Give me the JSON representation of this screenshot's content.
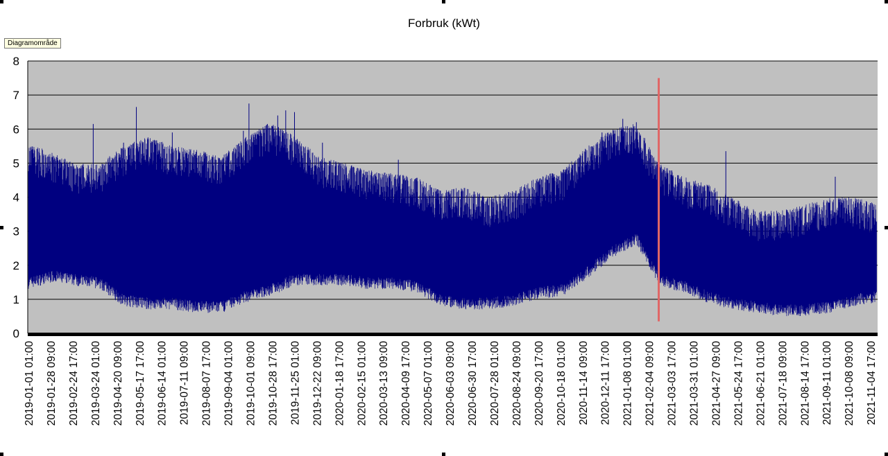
{
  "tooltip": "Diagramområde",
  "colors": {
    "plot_bg": "#c0c0c0",
    "series": "#000080",
    "marker": "#e06666",
    "grid": "#000000"
  },
  "chart_data": {
    "type": "line",
    "title": "Forbruk (kWt)",
    "xlabel": "",
    "ylabel": "",
    "ylim": [
      0,
      8
    ],
    "yticks": [
      0,
      1,
      2,
      3,
      4,
      5,
      6,
      7,
      8
    ],
    "grid": true,
    "x_tick_labels": [
      "2019-01-01 01:00",
      "2019-01-28 09:00",
      "2019-02-24 17:00",
      "2019-03-24 01:00",
      "2019-04-20 09:00",
      "2019-05-17 17:00",
      "2019-06-14 01:00",
      "2019-07-11 09:00",
      "2019-08-07 17:00",
      "2019-09-04 01:00",
      "2019-10-01 09:00",
      "2019-10-28 17:00",
      "2019-11-25 01:00",
      "2019-12-22 09:00",
      "2020-01-18 17:00",
      "2020-02-15 01:00",
      "2020-03-13 09:00",
      "2020-04-09 17:00",
      "2020-05-07 01:00",
      "2020-06-03 09:00",
      "2020-06-30 17:00",
      "2020-07-28 01:00",
      "2020-08-24 09:00",
      "2020-09-20 17:00",
      "2020-10-18 01:00",
      "2020-11-14 09:00",
      "2020-12-11 17:00",
      "2021-01-08 01:00",
      "2021-02-04 09:00",
      "2021-03-03 17:00",
      "2021-03-31 01:00",
      "2021-04-27 09:00",
      "2021-05-24 17:00",
      "2021-06-21 01:00",
      "2021-07-18 09:00",
      "2021-08-14 17:00",
      "2021-09-11 01:00",
      "2021-10-08 09:00",
      "2021-11-04 17:00"
    ],
    "series": [
      {
        "name": "",
        "x": [
          "2019-01-01",
          "2019-02-01",
          "2019-03-01",
          "2019-04-01",
          "2019-05-01",
          "2019-06-01",
          "2019-07-01",
          "2019-08-01",
          "2019-09-01",
          "2019-10-01",
          "2019-11-01",
          "2019-12-01",
          "2020-01-01",
          "2020-02-01",
          "2020-03-01",
          "2020-04-01",
          "2020-05-01",
          "2020-06-01",
          "2020-07-01",
          "2020-08-01",
          "2020-09-01",
          "2020-10-01",
          "2020-11-01",
          "2020-12-01",
          "2021-01-01",
          "2021-02-01",
          "2021-03-01",
          "2021-04-01",
          "2021-05-01",
          "2021-06-01",
          "2021-07-01",
          "2021-08-01",
          "2021-09-01",
          "2021-10-01",
          "2021-11-01",
          "2021-11-30"
        ],
        "min": [
          1.3,
          1.5,
          1.4,
          1.3,
          0.8,
          0.7,
          0.7,
          0.6,
          0.6,
          0.9,
          1.1,
          1.4,
          1.4,
          1.4,
          1.3,
          1.3,
          1.2,
          0.8,
          0.7,
          0.7,
          0.8,
          1.0,
          1.1,
          1.6,
          2.2,
          2.6,
          1.4,
          1.2,
          0.9,
          0.7,
          0.6,
          0.5,
          0.5,
          0.6,
          0.8,
          0.9
        ],
        "max": [
          5.6,
          5.3,
          5.0,
          5.0,
          5.5,
          5.8,
          5.5,
          5.4,
          5.2,
          5.8,
          6.2,
          5.8,
          5.2,
          5.0,
          4.8,
          4.7,
          4.6,
          4.2,
          4.3,
          4.0,
          4.2,
          4.6,
          4.8,
          5.5,
          6.0,
          6.2,
          5.0,
          4.6,
          4.4,
          4.0,
          3.6,
          3.6,
          3.8,
          4.0,
          4.0,
          3.8
        ],
        "peaks": [
          {
            "x": "2019-03-24",
            "y": 6.15
          },
          {
            "x": "2019-05-01",
            "y": 5.6
          },
          {
            "x": "2019-05-17",
            "y": 6.65
          },
          {
            "x": "2019-06-01",
            "y": 5.7
          },
          {
            "x": "2019-07-01",
            "y": 5.9
          },
          {
            "x": "2019-09-28",
            "y": 5.95
          },
          {
            "x": "2019-10-05",
            "y": 6.75
          },
          {
            "x": "2019-10-28",
            "y": 6.15
          },
          {
            "x": "2019-11-10",
            "y": 6.4
          },
          {
            "x": "2019-11-20",
            "y": 6.55
          },
          {
            "x": "2019-12-01",
            "y": 6.5
          },
          {
            "x": "2020-01-05",
            "y": 5.6
          },
          {
            "x": "2020-04-09",
            "y": 5.1
          },
          {
            "x": "2020-12-20",
            "y": 5.9
          },
          {
            "x": "2021-01-15",
            "y": 6.3
          },
          {
            "x": "2021-02-01",
            "y": 6.2
          },
          {
            "x": "2021-05-24",
            "y": 5.35
          },
          {
            "x": "2021-10-08",
            "y": 4.6
          }
        ]
      }
    ],
    "annotations": [
      {
        "type": "vline",
        "x": "2021-03-01",
        "y_from": 0.35,
        "y_to": 7.5
      }
    ]
  }
}
